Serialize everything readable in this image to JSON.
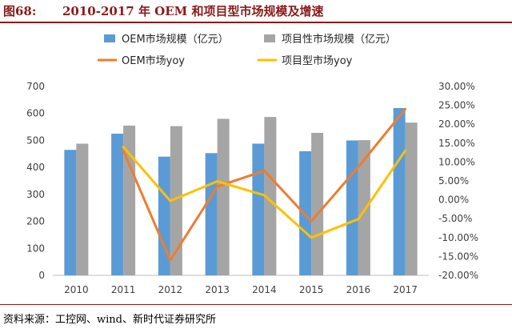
{
  "header": {
    "figure_label": "图68:",
    "figure_title": "2010-2017 年 OEM 和项目型市场规模及增速"
  },
  "footer": {
    "source": "资料来源：工控网、wind、新时代证券研究所"
  },
  "colors": {
    "bar_oem": "#5b9bd5",
    "bar_project": "#a5a5a5",
    "line_oem_yoy": "#ed7d31",
    "line_project_yoy": "#ffc000",
    "header": "#8b1a1a"
  },
  "chart_data": {
    "type": "bar",
    "categories": [
      "2010",
      "2011",
      "2012",
      "2013",
      "2014",
      "2015",
      "2016",
      "2017"
    ],
    "series": [
      {
        "name": "OEM市场规模（亿元）",
        "kind": "bar",
        "axis": "left",
        "values": [
          465,
          525,
          440,
          453,
          488,
          460,
          500,
          620
        ]
      },
      {
        "name": "项目性市场规模（亿元）",
        "kind": "bar",
        "axis": "left",
        "values": [
          488,
          555,
          553,
          580,
          587,
          528,
          501,
          566
        ]
      },
      {
        "name": "OEM市场yoy",
        "kind": "line",
        "axis": "right",
        "values": [
          null,
          0.13,
          -0.16,
          0.035,
          0.077,
          -0.057,
          0.087,
          0.24
        ]
      },
      {
        "name": "项目型市场yoy",
        "kind": "line",
        "axis": "right",
        "values": [
          null,
          0.14,
          -0.003,
          0.049,
          0.012,
          -0.1,
          -0.051,
          0.13
        ]
      }
    ],
    "y_left": {
      "ylim": [
        0,
        700
      ],
      "ticks": [
        0,
        100,
        200,
        300,
        400,
        500,
        600,
        700
      ]
    },
    "y_right": {
      "ylim": [
        -0.2,
        0.3
      ],
      "ticks": [
        -0.2,
        -0.15,
        -0.1,
        -0.05,
        0,
        0.05,
        0.1,
        0.15,
        0.2,
        0.25,
        0.3
      ],
      "tick_labels": [
        "-20.00%",
        "-15.00%",
        "-10.00%",
        "-5.00%",
        "0.00%",
        "5.00%",
        "10.00%",
        "15.00%",
        "20.00%",
        "25.00%",
        "30.00%"
      ]
    },
    "legend_placement": "top",
    "grid": false
  }
}
